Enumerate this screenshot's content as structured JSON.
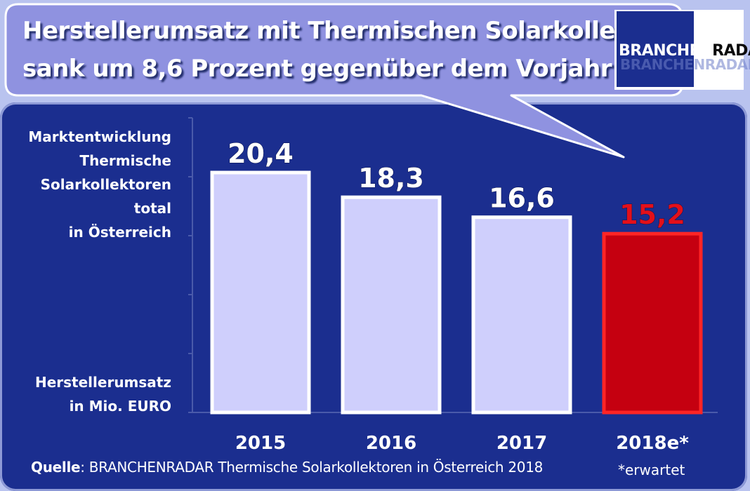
{
  "title": {
    "line1": "Herstellerumsatz mit  Thermischen Solarkollektoren",
    "line2": "sank um 8,6 Prozent gegenüber dem Vorjahr"
  },
  "logo": {
    "part1": "BRANCHEN",
    "part2": "RADAR"
  },
  "ylabel_top": [
    "Marktentwicklung",
    "Thermische",
    "Solarkollektoren",
    "total",
    "in Österreich"
  ],
  "ylabel_bottom": [
    "Herstellerumsatz",
    "in Mio. EURO"
  ],
  "source": {
    "prefix": "Quelle",
    "text": ": BRANCHENRADAR  Thermische Solarkollektoren in Österreich 2018"
  },
  "footnote": "*erwartet",
  "colors": {
    "panel": "#1b2e8f",
    "bar": "#cfcffc",
    "bar_border": "#ffffff",
    "highlight_bar": "#c50010",
    "highlight_border": "#ff2525",
    "highlight_label": "#e3101a",
    "bubble": "#8f92e0"
  },
  "chart_data": {
    "type": "bar",
    "categories": [
      "2015",
      "2016",
      "2017",
      "2018e*"
    ],
    "values": [
      20.4,
      18.3,
      16.6,
      15.2
    ],
    "value_labels": [
      "20,4",
      "18,3",
      "16,6",
      "15,2"
    ],
    "highlight_index": 3,
    "ylim": [
      0,
      20.4
    ],
    "grid": false,
    "title": "",
    "xlabel": "",
    "ylabel": "Herstellerumsatz in Mio. EURO"
  }
}
